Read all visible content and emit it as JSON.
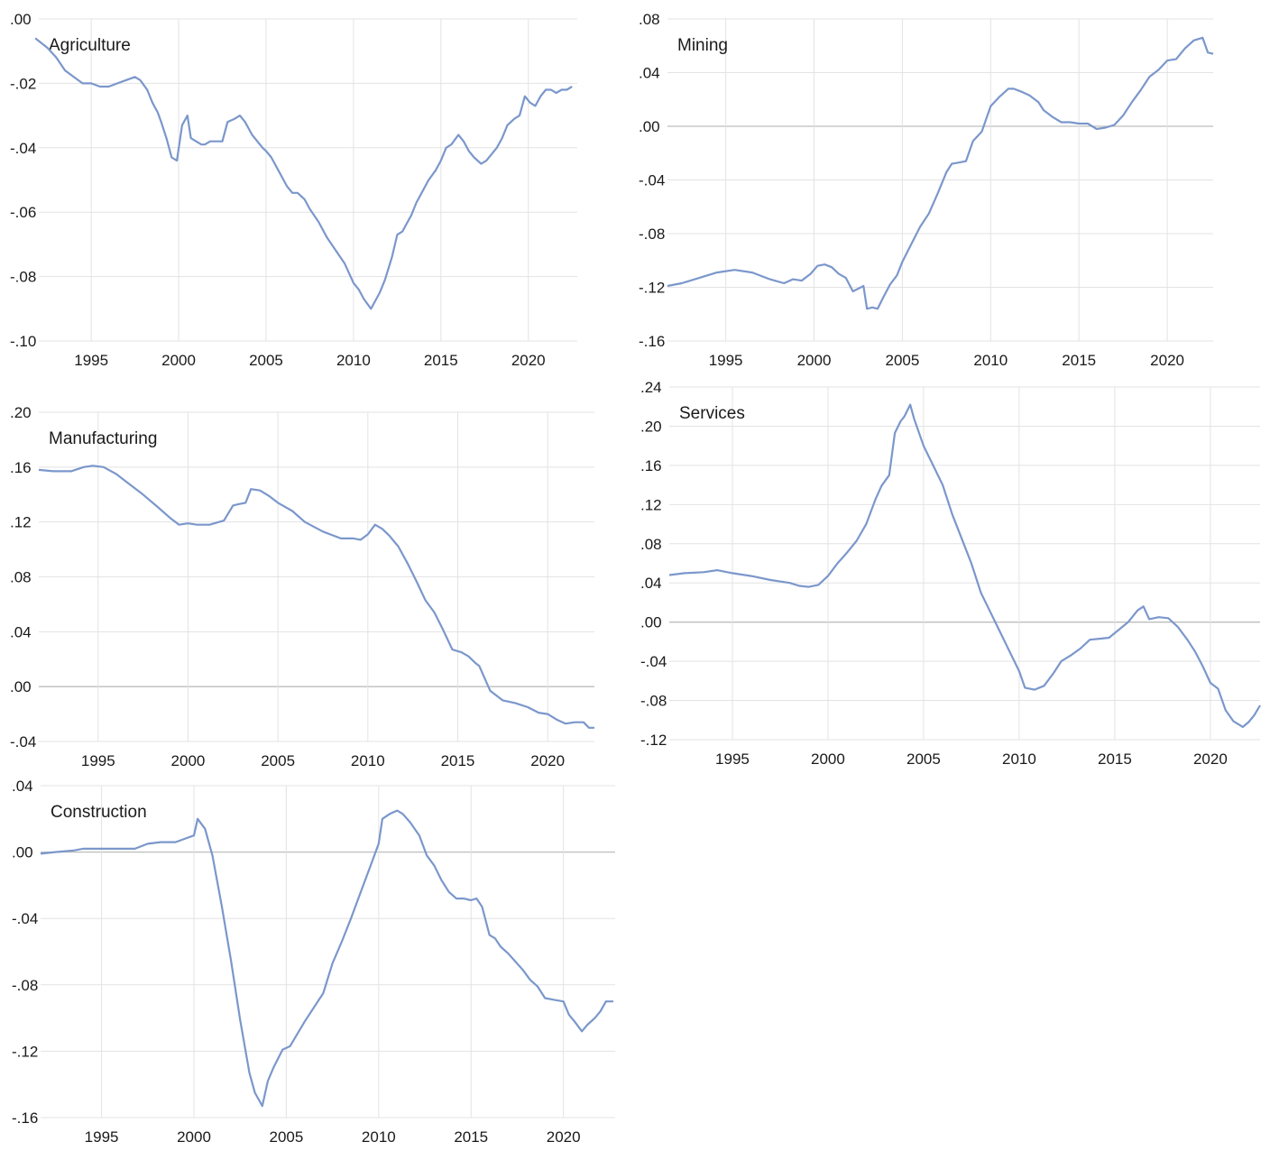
{
  "chart_data": [
    {
      "type": "line",
      "title": "Agriculture",
      "ylim": [
        -0.1,
        0.0
      ],
      "yticks": [
        0.0,
        -0.02,
        -0.04,
        -0.06,
        -0.08,
        -0.1
      ],
      "ytick_labels": [
        ".00",
        "-.02",
        "-.04",
        "-.06",
        "-.08",
        "-.10"
      ],
      "xlim": [
        1991.7,
        2022.8
      ],
      "xticks": [
        1995,
        2000,
        2005,
        2010,
        2015,
        2020
      ],
      "xtick_labels": [
        "1995",
        "2000",
        "2005",
        "2010",
        "2015",
        "2020"
      ],
      "grid": true,
      "series": [
        {
          "x": [
            1991.8,
            1992.5,
            1993,
            1993.5,
            1994,
            1994.5,
            1995,
            1995.5,
            1996,
            1996.5,
            1997,
            1997.5,
            1997.8,
            1998.2,
            1998.5,
            1998.8,
            1999,
            1999.3,
            1999.6,
            1999.9,
            2000.2,
            2000.5,
            2000.7,
            2001,
            2001.3,
            2001.5,
            2001.8,
            2002.2,
            2002.5,
            2002.8,
            2003.2,
            2003.5,
            2003.8,
            2004,
            2004.2,
            2004.5,
            2004.8,
            2005,
            2005.3,
            2005.6,
            2005.9,
            2006.2,
            2006.5,
            2006.8,
            2007.2,
            2007.5,
            2008,
            2008.5,
            2009,
            2009.5,
            2010,
            2010.3,
            2010.6,
            2011,
            2011.3,
            2011.5,
            2011.8,
            2012.2,
            2012.5,
            2012.8,
            2013,
            2013.3,
            2013.6,
            2013.9,
            2014.3,
            2014.7,
            2015,
            2015.3,
            2015.6,
            2016,
            2016.3,
            2016.6,
            2016.9,
            2017.3,
            2017.6,
            2017.9,
            2018.2,
            2018.5,
            2018.8,
            2019.2,
            2019.5,
            2019.8,
            2020.1,
            2020.4,
            2020.7,
            2021,
            2021.3,
            2021.6,
            2021.9,
            2022.2,
            2022.5
          ],
          "y": [
            -0.006,
            -0.009,
            -0.012,
            -0.016,
            -0.018,
            -0.02,
            -0.02,
            -0.021,
            -0.021,
            -0.02,
            -0.019,
            -0.018,
            -0.019,
            -0.022,
            -0.026,
            -0.029,
            -0.032,
            -0.037,
            -0.043,
            -0.044,
            -0.033,
            -0.03,
            -0.037,
            -0.038,
            -0.039,
            -0.039,
            -0.038,
            -0.038,
            -0.038,
            -0.032,
            -0.031,
            -0.03,
            -0.032,
            -0.034,
            -0.036,
            -0.038,
            -0.04,
            -0.041,
            -0.043,
            -0.046,
            -0.049,
            -0.052,
            -0.054,
            -0.054,
            -0.056,
            -0.059,
            -0.063,
            -0.068,
            -0.072,
            -0.076,
            -0.082,
            -0.084,
            -0.087,
            -0.09,
            -0.087,
            -0.085,
            -0.081,
            -0.074,
            -0.067,
            -0.066,
            -0.064,
            -0.061,
            -0.057,
            -0.054,
            -0.05,
            -0.047,
            -0.044,
            -0.04,
            -0.039,
            -0.036,
            -0.038,
            -0.041,
            -0.043,
            -0.045,
            -0.044,
            -0.042,
            -0.04,
            -0.037,
            -0.033,
            -0.031,
            -0.03,
            -0.024,
            -0.026,
            -0.027,
            -0.024,
            -0.022,
            -0.022,
            -0.023,
            -0.022,
            -0.022,
            -0.021
          ]
        }
      ]
    },
    {
      "type": "line",
      "title": "Mining",
      "ylim": [
        -0.16,
        0.08
      ],
      "yticks": [
        0.08,
        0.04,
        0.0,
        -0.04,
        -0.08,
        -0.12,
        -0.16
      ],
      "ytick_labels": [
        ".08",
        ".04",
        ".00",
        "-.04",
        "-.08",
        "-.12",
        "-.16"
      ],
      "xlim": [
        1991.7,
        2022.8
      ],
      "xticks": [
        1995,
        2000,
        2005,
        2010,
        2015,
        2020
      ],
      "xtick_labels": [
        "1995",
        "2000",
        "2005",
        "2010",
        "2015",
        "2020"
      ],
      "grid": true,
      "series": [
        {
          "x": [
            1991.7,
            1992.5,
            1993.5,
            1994.5,
            1995.5,
            1996.5,
            1997.5,
            1998.3,
            1998.8,
            1999.3,
            1999.8,
            2000.2,
            2000.6,
            2001,
            2001.4,
            2001.8,
            2002.2,
            2002.5,
            2002.8,
            2003,
            2003.3,
            2003.6,
            2003.9,
            2004.3,
            2004.7,
            2005,
            2005.5,
            2006,
            2006.5,
            2007,
            2007.5,
            2007.8,
            2008.2,
            2008.6,
            2009,
            2009.5,
            2010,
            2010.5,
            2011,
            2011.3,
            2011.7,
            2012.2,
            2012.7,
            2013,
            2013.5,
            2014,
            2014.5,
            2015,
            2015.5,
            2016,
            2016.5,
            2017,
            2017.5,
            2018,
            2018.5,
            2019,
            2019.5,
            2020,
            2020.5,
            2021,
            2021.5,
            2022,
            2022.3,
            2022.6
          ],
          "y": [
            -0.119,
            -0.117,
            -0.113,
            -0.109,
            -0.107,
            -0.109,
            -0.114,
            -0.117,
            -0.114,
            -0.115,
            -0.11,
            -0.104,
            -0.103,
            -0.105,
            -0.11,
            -0.113,
            -0.123,
            -0.121,
            -0.119,
            -0.136,
            -0.135,
            -0.136,
            -0.128,
            -0.118,
            -0.111,
            -0.101,
            -0.088,
            -0.075,
            -0.065,
            -0.05,
            -0.034,
            -0.028,
            -0.027,
            -0.026,
            -0.011,
            -0.004,
            0.015,
            0.022,
            0.028,
            0.028,
            0.026,
            0.023,
            0.018,
            0.012,
            0.007,
            0.003,
            0.003,
            0.002,
            0.002,
            -0.002,
            -0.001,
            0.001,
            0.008,
            0.018,
            0.027,
            0.037,
            0.042,
            0.049,
            0.05,
            0.058,
            0.064,
            0.066,
            0.055,
            0.054
          ]
        }
      ]
    },
    {
      "type": "line",
      "title": "Manufacturing",
      "ylim": [
        -0.04,
        0.2
      ],
      "yticks": [
        0.2,
        0.16,
        0.12,
        0.08,
        0.04,
        0.0,
        -0.04
      ],
      "ytick_labels": [
        ".20",
        ".16",
        ".12",
        ".08",
        ".04",
        ".00",
        "-.04"
      ],
      "xlim": [
        1991.7,
        2022.8
      ],
      "xticks": [
        1995,
        2000,
        2005,
        2010,
        2015,
        2020
      ],
      "xtick_labels": [
        "1995",
        "2000",
        "2005",
        "2010",
        "2015",
        "2020"
      ],
      "grid": true,
      "series": [
        {
          "x": [
            1991.7,
            1992.5,
            1993.5,
            1994.2,
            1994.7,
            1995.3,
            1996,
            1996.7,
            1997.5,
            1998.3,
            1999,
            1999.5,
            2000,
            2000.5,
            2001.2,
            2002,
            2002.5,
            2002.8,
            2003.2,
            2003.5,
            2004,
            2004.5,
            2005,
            2005.8,
            2006.5,
            2007.5,
            2008.5,
            2009.2,
            2009.6,
            2010,
            2010.4,
            2010.8,
            2011.2,
            2011.7,
            2012.2,
            2012.7,
            2013.2,
            2013.7,
            2014.2,
            2014.7,
            2015.2,
            2015.6,
            2016,
            2016.2,
            2016.8,
            2017.5,
            2018.2,
            2018.9,
            2019.5,
            2020,
            2020.5,
            2021,
            2021.5,
            2022,
            2022.3,
            2022.6
          ],
          "y": [
            0.158,
            0.157,
            0.157,
            0.16,
            0.161,
            0.16,
            0.155,
            0.148,
            0.14,
            0.131,
            0.123,
            0.118,
            0.119,
            0.118,
            0.118,
            0.121,
            0.132,
            0.133,
            0.134,
            0.144,
            0.143,
            0.139,
            0.134,
            0.128,
            0.12,
            0.113,
            0.108,
            0.108,
            0.107,
            0.111,
            0.118,
            0.115,
            0.11,
            0.102,
            0.09,
            0.077,
            0.063,
            0.054,
            0.041,
            0.027,
            0.025,
            0.022,
            0.017,
            0.015,
            -0.003,
            -0.01,
            -0.012,
            -0.015,
            -0.019,
            -0.02,
            -0.024,
            -0.027,
            -0.026,
            -0.026,
            -0.03,
            -0.03
          ]
        }
      ]
    },
    {
      "type": "line",
      "title": "Services",
      "ylim": [
        -0.12,
        0.24
      ],
      "yticks": [
        0.24,
        0.2,
        0.16,
        0.12,
        0.08,
        0.04,
        0.0,
        -0.04,
        -0.08,
        -0.12
      ],
      "ytick_labels": [
        ".24",
        ".20",
        ".16",
        ".12",
        ".08",
        ".04",
        ".00",
        "-.04",
        "-.08",
        "-.12"
      ],
      "xlim": [
        1991.7,
        2022.8
      ],
      "xticks": [
        1995,
        2000,
        2005,
        2010,
        2015,
        2020
      ],
      "xtick_labels": [
        "1995",
        "2000",
        "2005",
        "2010",
        "2015",
        "2020"
      ],
      "grid": true,
      "series": [
        {
          "x": [
            1991.7,
            1992.5,
            1993.5,
            1994.2,
            1995,
            1996,
            1997,
            1998,
            1998.5,
            1999,
            1999.5,
            2000,
            2000.5,
            2001,
            2001.5,
            2002,
            2002.5,
            2002.8,
            2003.2,
            2003.5,
            2003.8,
            2004,
            2004.3,
            2004.5,
            2005,
            2005.5,
            2006,
            2006.5,
            2007,
            2007.5,
            2008,
            2008.5,
            2009,
            2009.5,
            2010,
            2010.3,
            2010.8,
            2011.3,
            2011.8,
            2012.2,
            2012.7,
            2013.2,
            2013.7,
            2014.2,
            2014.7,
            2015.2,
            2015.7,
            2016.2,
            2016.5,
            2016.8,
            2017.3,
            2017.8,
            2018.3,
            2018.8,
            2019.2,
            2019.6,
            2020,
            2020.4,
            2020.8,
            2021.2,
            2021.7,
            2022,
            2022.3,
            2022.6
          ],
          "y": [
            0.048,
            0.05,
            0.051,
            0.053,
            0.05,
            0.047,
            0.043,
            0.04,
            0.037,
            0.036,
            0.038,
            0.047,
            0.06,
            0.071,
            0.083,
            0.1,
            0.126,
            0.139,
            0.15,
            0.193,
            0.205,
            0.21,
            0.222,
            0.208,
            0.18,
            0.16,
            0.14,
            0.11,
            0.085,
            0.06,
            0.03,
            0.01,
            -0.01,
            -0.03,
            -0.05,
            -0.067,
            -0.069,
            -0.065,
            -0.052,
            -0.04,
            -0.034,
            -0.027,
            -0.018,
            -0.017,
            -0.016,
            -0.008,
            0.0,
            0.012,
            0.016,
            0.003,
            0.005,
            0.004,
            -0.005,
            -0.018,
            -0.03,
            -0.045,
            -0.062,
            -0.068,
            -0.09,
            -0.101,
            -0.107,
            -0.102,
            -0.095,
            -0.085
          ]
        }
      ]
    },
    {
      "type": "line",
      "title": "Construction",
      "ylim": [
        -0.16,
        0.04
      ],
      "yticks": [
        0.04,
        0.0,
        -0.04,
        -0.08,
        -0.12,
        -0.16
      ],
      "ytick_labels": [
        ".04",
        ".00",
        "-.04",
        "-.08",
        "-.12",
        "-.16"
      ],
      "xlim": [
        1991.7,
        2022.8
      ],
      "xticks": [
        1995,
        2000,
        2005,
        2010,
        2015,
        2020
      ],
      "xtick_labels": [
        "1995",
        "2000",
        "2005",
        "2010",
        "2015",
        "2020"
      ],
      "grid": true,
      "series": [
        {
          "x": [
            1991.7,
            1992.5,
            1993.5,
            1994,
            1995,
            1996,
            1996.8,
            1997.5,
            1998.2,
            1999,
            1999.5,
            2000,
            2000.2,
            2000.6,
            2001,
            2001.5,
            2002,
            2002.5,
            2003,
            2003.3,
            2003.7,
            2004,
            2004.3,
            2004.8,
            2005.2,
            2006,
            2007,
            2007.5,
            2008,
            2008.5,
            2009,
            2009.5,
            2010,
            2010.2,
            2010.6,
            2011,
            2011.3,
            2011.7,
            2012.2,
            2012.6,
            2013,
            2013.4,
            2013.8,
            2014.2,
            2014.6,
            2015,
            2015.3,
            2015.6,
            2016,
            2016.3,
            2016.6,
            2017,
            2017.4,
            2017.8,
            2018.2,
            2018.6,
            2019,
            2019.5,
            2020,
            2020.3,
            2020.6,
            2021,
            2021.3,
            2021.7,
            2022,
            2022.3,
            2022.7
          ],
          "y": [
            -0.001,
            0.0,
            0.001,
            0.002,
            0.002,
            0.002,
            0.002,
            0.005,
            0.006,
            0.006,
            0.008,
            0.01,
            0.02,
            0.014,
            -0.002,
            -0.032,
            -0.065,
            -0.101,
            -0.133,
            -0.145,
            -0.153,
            -0.138,
            -0.13,
            -0.119,
            -0.117,
            -0.102,
            -0.085,
            -0.067,
            -0.054,
            -0.04,
            -0.025,
            -0.01,
            0.005,
            0.02,
            0.023,
            0.025,
            0.023,
            0.018,
            0.01,
            -0.002,
            -0.008,
            -0.017,
            -0.024,
            -0.028,
            -0.028,
            -0.029,
            -0.028,
            -0.033,
            -0.05,
            -0.052,
            -0.057,
            -0.061,
            -0.066,
            -0.071,
            -0.077,
            -0.081,
            -0.088,
            -0.089,
            -0.09,
            -0.098,
            -0.102,
            -0.108,
            -0.104,
            -0.1,
            -0.096,
            -0.09,
            -0.09
          ]
        }
      ]
    }
  ]
}
